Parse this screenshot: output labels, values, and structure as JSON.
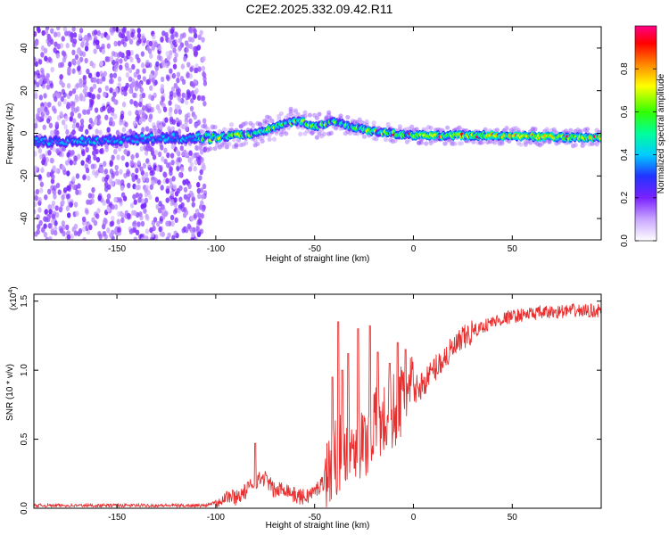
{
  "title": "C2E2.2025.332.09.42.R11",
  "chart_data": [
    {
      "type": "heatmap",
      "title": "C2E2.2025.332.09.42.R11",
      "xlabel": "Height of straight line (km)",
      "ylabel": "Frequency (Hz)",
      "xlim": [
        -192,
        95
      ],
      "ylim": [
        -50,
        50
      ],
      "xticks": [
        -150,
        -100,
        -50,
        0,
        50
      ],
      "yticks": [
        -40,
        -20,
        0,
        20,
        40
      ],
      "colorbar": {
        "label": "Normalized spectral amplitude",
        "range": [
          0,
          1
        ],
        "ticks": [
          0.0,
          0.2,
          0.4,
          0.6,
          0.8
        ],
        "colors": [
          "#ffffff",
          "#b68cff",
          "#7a22ff",
          "#2233ff",
          "#00ccff",
          "#00ff99",
          "#33ff00",
          "#ffff00",
          "#ff8800",
          "#ff0000",
          "#ff0088"
        ]
      },
      "ridge": {
        "x": [
          -192,
          -150,
          -120,
          -100,
          -90,
          -80,
          -70,
          -60,
          -55,
          -50,
          -45,
          -40,
          -35,
          -30,
          -25,
          -20,
          -10,
          0,
          10,
          20,
          40,
          60,
          80,
          95
        ],
        "y": [
          -4,
          -3,
          -2,
          -2,
          -1,
          0,
          3,
          6,
          5,
          3,
          4,
          6,
          4,
          3,
          2,
          1,
          0,
          -1,
          -1,
          -1,
          -1,
          -1.5,
          -2,
          -2
        ]
      },
      "noise_region_x": [
        -192,
        -105
      ]
    },
    {
      "type": "line",
      "xlabel": "Height of straight line (km)",
      "ylabel": "SNR (10 * v/v)",
      "multiplier_label": "(x10",
      "multiplier_exponent": "4",
      "xlim": [
        -192,
        95
      ],
      "ylim": [
        0,
        1.55
      ],
      "xticks": [
        -150,
        -100,
        -50,
        0,
        50
      ],
      "yticks": [
        "0.0",
        "0.5",
        "1.0",
        "1.5"
      ],
      "series": [
        {
          "name": "SNR",
          "color": "#e83030",
          "x": [
            -192,
            -150,
            -120,
            -105,
            -100,
            -95,
            -90,
            -85,
            -80,
            -75,
            -70,
            -65,
            -60,
            -55,
            -50,
            -45,
            -40,
            -35,
            -30,
            -25,
            -20,
            -15,
            -10,
            -5,
            0,
            5,
            10,
            15,
            20,
            25,
            30,
            40,
            50,
            60,
            70,
            80,
            95
          ],
          "y": [
            0.02,
            0.02,
            0.02,
            0.02,
            0.05,
            0.09,
            0.08,
            0.12,
            0.2,
            0.22,
            0.12,
            0.15,
            0.09,
            0.08,
            0.12,
            0.2,
            0.35,
            0.45,
            0.5,
            0.45,
            0.6,
            0.62,
            0.7,
            0.8,
            0.85,
            0.9,
            1.0,
            1.08,
            1.15,
            1.22,
            1.28,
            1.35,
            1.39,
            1.41,
            1.42,
            1.43,
            1.43
          ]
        }
      ],
      "spikes": [
        {
          "x": -80,
          "y": 0.47
        },
        {
          "x": -41,
          "y": 0.95
        },
        {
          "x": -38,
          "y": 1.35
        },
        {
          "x": -36,
          "y": 1.0
        },
        {
          "x": -33,
          "y": 1.12
        },
        {
          "x": -28,
          "y": 1.3
        },
        {
          "x": -22,
          "y": 1.32
        },
        {
          "x": -18,
          "y": 1.13
        },
        {
          "x": -12,
          "y": 1.05
        },
        {
          "x": -8,
          "y": 1.2
        },
        {
          "x": -4,
          "y": 1.15
        }
      ]
    }
  ]
}
